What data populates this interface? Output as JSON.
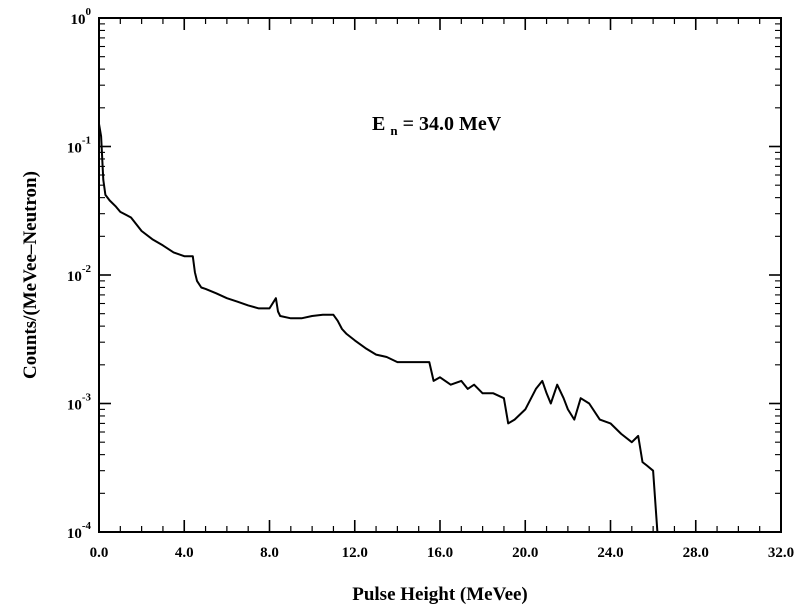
{
  "chart_data": {
    "type": "line",
    "title": "",
    "xlabel": "Pulse Height (MeVee)",
    "ylabel": "Counts/(MeVee–Neutron)",
    "xscale": "linear",
    "yscale": "log",
    "xlim": [
      0,
      32
    ],
    "ylim": [
      0.0001,
      1
    ],
    "grid": false,
    "legend": "none",
    "x_ticks": [
      {
        "value": 0,
        "label": "0.0"
      },
      {
        "value": 4,
        "label": "4.0"
      },
      {
        "value": 8,
        "label": "8.0"
      },
      {
        "value": 12,
        "label": "12.0"
      },
      {
        "value": 16,
        "label": "16.0"
      },
      {
        "value": 20,
        "label": "20.0"
      },
      {
        "value": 24,
        "label": "24.0"
      },
      {
        "value": 28,
        "label": "28.0"
      },
      {
        "value": 32,
        "label": "32.0"
      }
    ],
    "y_ticks": [
      {
        "value": 1,
        "base": "10",
        "exp": "0"
      },
      {
        "value": 0.1,
        "base": "10",
        "exp": "-1"
      },
      {
        "value": 0.01,
        "base": "10",
        "exp": "-2"
      },
      {
        "value": 0.001,
        "base": "10",
        "exp": "-3"
      },
      {
        "value": 0.0001,
        "base": "10",
        "exp": "-4"
      }
    ],
    "annotation": {
      "main": "E",
      "sub": "n",
      "rest": " = 34.0 MeV"
    },
    "series": [
      {
        "color": "#000000",
        "x": [
          0.0,
          0.1,
          0.2,
          0.3,
          0.5,
          0.8,
          1.0,
          1.5,
          2.0,
          2.5,
          3.0,
          3.5,
          4.0,
          4.4,
          4.5,
          4.6,
          4.8,
          5.0,
          5.5,
          6.0,
          6.5,
          7.0,
          7.5,
          8.0,
          8.3,
          8.4,
          8.5,
          9.0,
          9.5,
          10.0,
          10.5,
          11.0,
          11.2,
          11.4,
          11.6,
          12.0,
          12.5,
          13.0,
          13.5,
          14.0,
          14.5,
          15.0,
          15.5,
          15.7,
          16.0,
          16.5,
          17.0,
          17.3,
          17.6,
          18.0,
          18.5,
          19.0,
          19.2,
          19.5,
          20.0,
          20.5,
          20.8,
          21.0,
          21.2,
          21.5,
          21.8,
          22.0,
          22.3,
          22.6,
          23.0,
          23.5,
          24.0,
          24.5,
          25.0,
          25.3,
          25.5,
          25.7,
          26.0,
          26.2
        ],
        "y": [
          0.15,
          0.12,
          0.055,
          0.042,
          0.038,
          0.034,
          0.031,
          0.028,
          0.022,
          0.019,
          0.017,
          0.015,
          0.014,
          0.014,
          0.0105,
          0.009,
          0.008,
          0.0078,
          0.0072,
          0.0066,
          0.0062,
          0.0058,
          0.0055,
          0.0055,
          0.0066,
          0.0052,
          0.0048,
          0.0046,
          0.0046,
          0.0048,
          0.0049,
          0.0049,
          0.0044,
          0.0038,
          0.0035,
          0.0031,
          0.0027,
          0.0024,
          0.0023,
          0.0021,
          0.0021,
          0.0021,
          0.0021,
          0.0015,
          0.0016,
          0.0014,
          0.0015,
          0.0013,
          0.0014,
          0.0012,
          0.0012,
          0.0011,
          0.0007,
          0.00075,
          0.0009,
          0.0013,
          0.0015,
          0.0012,
          0.001,
          0.0014,
          0.0011,
          0.0009,
          0.00075,
          0.0011,
          0.001,
          0.00075,
          0.0007,
          0.00058,
          0.0005,
          0.00056,
          0.00035,
          0.00033,
          0.0003,
          0.0001
        ]
      }
    ]
  }
}
